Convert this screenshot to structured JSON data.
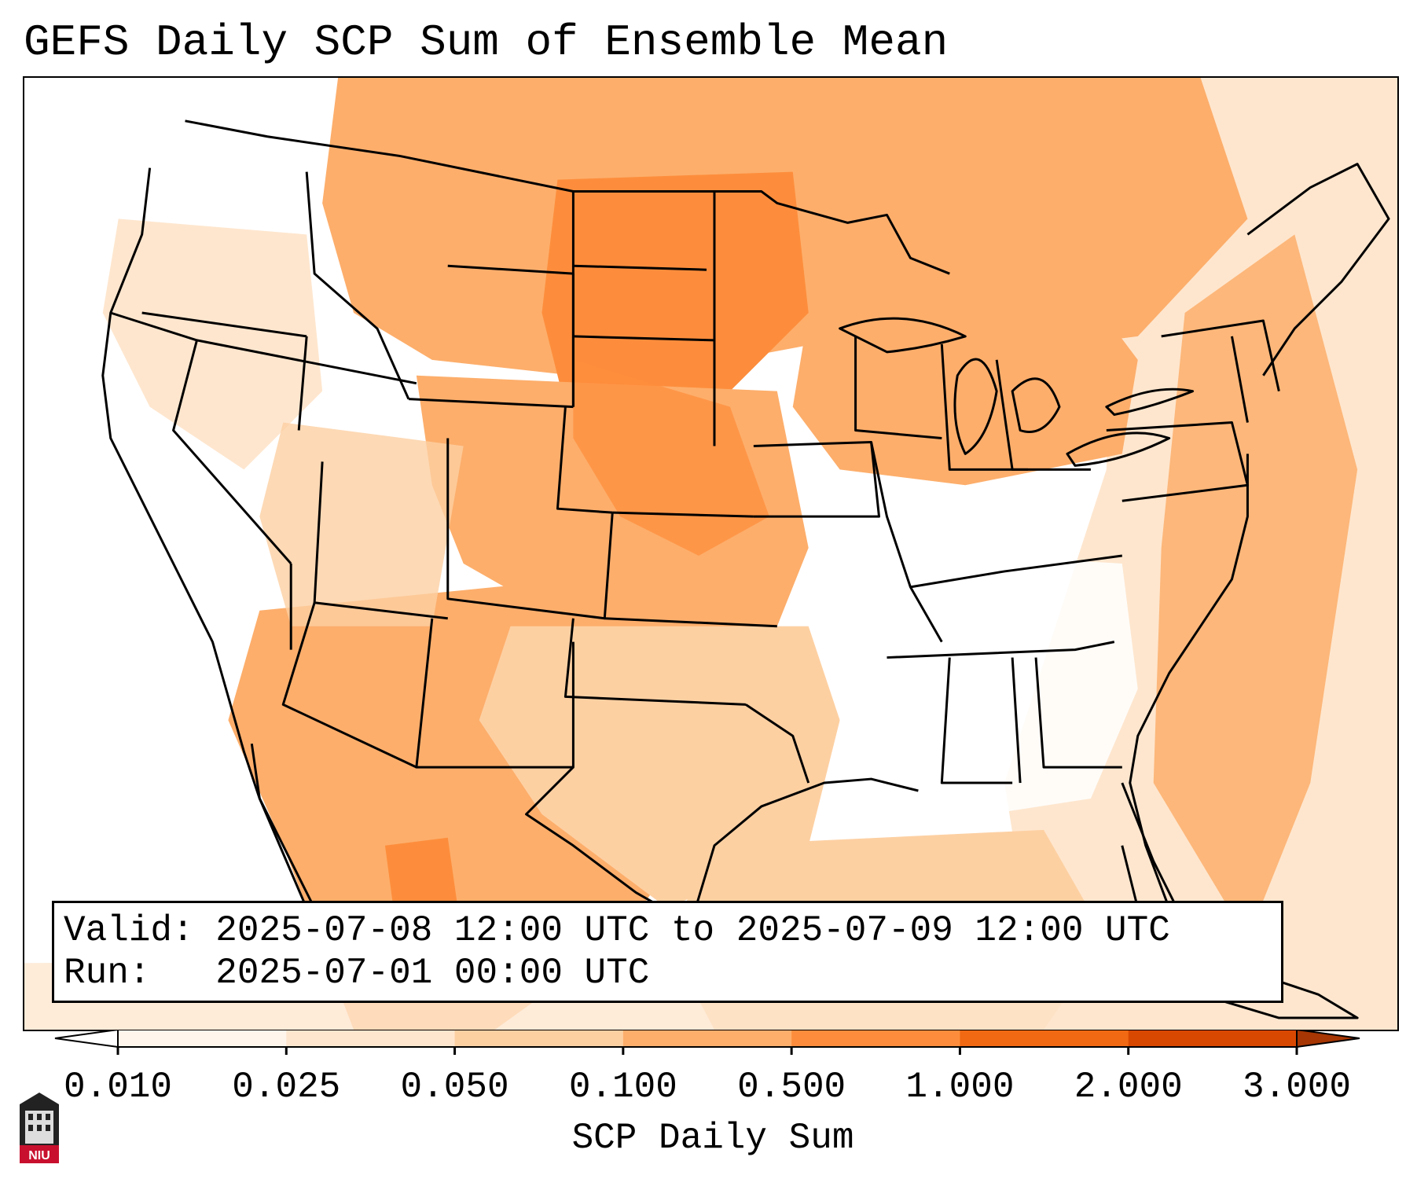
{
  "title": "GEFS Daily SCP Sum of Ensemble Mean",
  "info": {
    "valid_label": "Valid:",
    "valid_value": "2025-07-08 12:00 UTC to 2025-07-09 12:00 UTC",
    "run_label": "Run:",
    "run_value": "2025-07-01 00:00 UTC"
  },
  "colorbar": {
    "title": "SCP Daily Sum",
    "ticks": [
      "0.010",
      "0.025",
      "0.050",
      "0.100",
      "0.500",
      "1.000",
      "2.000",
      "3.000"
    ],
    "colors": [
      "#fff5eb",
      "#fee6ce",
      "#fdd0a2",
      "#fdae6b",
      "#fd8d3c",
      "#f16913",
      "#d94801",
      "#a63603"
    ]
  },
  "logo": {
    "text": "NIU",
    "color": "#c8102e"
  }
}
